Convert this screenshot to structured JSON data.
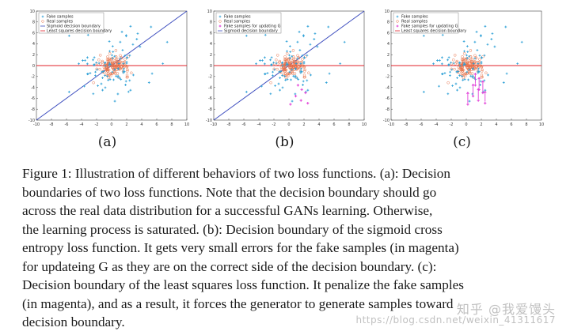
{
  "figure": {
    "panels": [
      {
        "label": "(a)",
        "legend": [
          "Fake samples",
          "Real samples",
          "Sigmoid decision boundary",
          "Least squares decision boundary"
        ],
        "legend_kinds": [
          "fake",
          "real",
          "sigmoid",
          "ls"
        ],
        "show_sigmoid": true,
        "show_magenta": false,
        "show_arrows": false
      },
      {
        "label": "(b)",
        "legend": [
          "Fake samples",
          "Real samples",
          "Fake samples for updating G",
          "Sigmoid decision boundary"
        ],
        "legend_kinds": [
          "fake",
          "real",
          "magenta",
          "sigmoid"
        ],
        "show_sigmoid": true,
        "show_magenta": true,
        "show_arrows": false
      },
      {
        "label": "(c)",
        "legend": [
          "Fake samples",
          "Real samples",
          "Fake samples for updating G",
          "Least squares decision boundary"
        ],
        "legend_kinds": [
          "fake",
          "real",
          "magenta",
          "ls"
        ],
        "show_sigmoid": false,
        "show_magenta": true,
        "show_arrows": true
      }
    ],
    "x_ticks": [
      "-10",
      "-8",
      "-6",
      "-4",
      "-2",
      "0",
      "2",
      "4",
      "6",
      "8",
      "10"
    ],
    "y_ticks": [
      "10",
      "8",
      "6",
      "4",
      "2",
      "0",
      "-2",
      "-4",
      "-6",
      "-8",
      "-10"
    ],
    "xlim": [
      -10,
      10
    ],
    "ylim": [
      -10,
      10
    ],
    "colors": {
      "fake": "#2a9fd6",
      "real": "#e8734a",
      "magenta": "#e23fd8",
      "sigmoid": "#3f4fbf",
      "ls": "#e0202a"
    }
  },
  "caption": {
    "lines": [
      "Figure 1: Illustration of different behaviors of two loss functions. (a): Decision",
      "boundaries of two loss functions. Note that the decision boundary should go",
      "across the real data distribution for a successful GANs learning. Otherwise,",
      "the learning process is saturated. (b): Decision boundary of the sigmoid cross",
      "entropy loss function. It gets very small errors for the fake samples (in magenta)",
      "for updateing G as they are on the correct side of the decision boundary. (c):",
      "Decision boundary of the least squares loss function. It penalize the fake samples",
      "(in magenta), and as a result, it forces the generator to generate samples toward",
      "decision boundary."
    ]
  },
  "watermark": {
    "brand": "知乎 @我爱馒头",
    "url": "https://blog.csdn.net/weixin_41311617"
  }
}
